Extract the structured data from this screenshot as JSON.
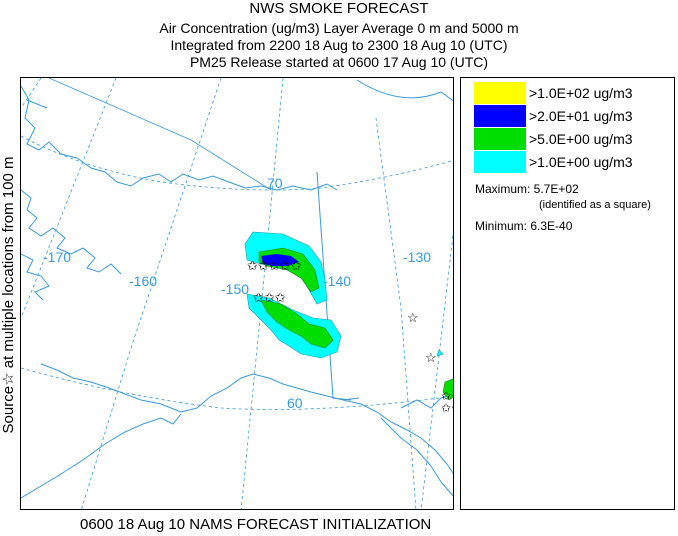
{
  "header": {
    "title": "NWS SMOKE FORECAST",
    "line2": "Air Concentration (ug/m3) Layer Average    0 m and  5000 m",
    "line3": "Integrated from 2200 18 Aug to 2300 18 Aug 10 (UTC)",
    "line4": "PM25 Release started at 0600 17 Aug 10 (UTC)"
  },
  "side_label": "Source☆  at multiple locations   from   100 m",
  "map": {
    "longitude_labels": [
      "-170",
      "-160",
      "-150",
      "-140",
      "-130"
    ],
    "latitude_labels": [
      "70",
      "60"
    ],
    "colors": {
      "coast": "#3a9bd8",
      "grid": "#3a9bd8",
      "border": "#3a9bd8"
    }
  },
  "legend": {
    "items": [
      {
        "label": ">1.0E+02 ug/m3",
        "color": "#ffff00"
      },
      {
        "label": ">2.0E+01 ug/m3",
        "color": "#0000ff"
      },
      {
        "label": ">5.0E+00 ug/m3",
        "color": "#00dd00"
      },
      {
        "label": ">1.0E+00 ug/m3",
        "color": "#00ffff"
      }
    ],
    "maximum": "Maximum: 5.7E+02",
    "maximum_note": "(identified as a square)",
    "minimum": "Minimum: 6.3E-40"
  },
  "footer": "0600 18 Aug 10 NAMS FORECAST INITIALIZATION"
}
